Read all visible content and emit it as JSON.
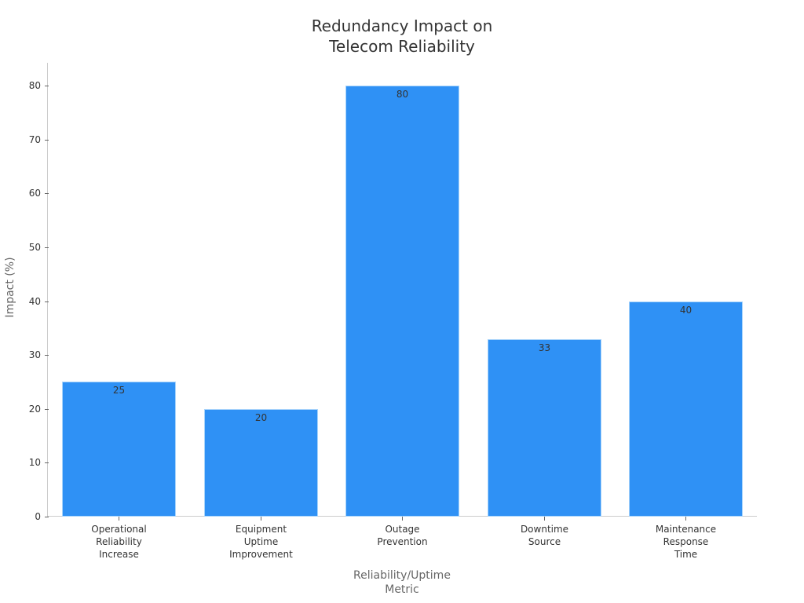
{
  "chart_data": {
    "type": "bar",
    "title": "Redundancy Impact on\nTelecom Reliability",
    "xlabel": "Reliability/Uptime\nMetric",
    "ylabel": "Impact (%)",
    "categories": [
      "Operational\nReliability\nIncrease",
      "Equipment\nUptime\nImprovement",
      "Outage\nPrevention",
      "Downtime\nSource",
      "Maintenance\nResponse\nTime"
    ],
    "values": [
      25,
      20,
      80,
      33,
      40
    ],
    "data_labels": [
      "25",
      "20",
      "80",
      "33",
      "40"
    ],
    "yticks": [
      "0",
      "10",
      "20",
      "30",
      "40",
      "50",
      "60",
      "70",
      "80"
    ],
    "ylim": [
      0,
      80
    ],
    "grid": false,
    "legend": null,
    "colors": {
      "bar": "#2f91f5",
      "bar_edge": "#a8d4fb"
    }
  }
}
